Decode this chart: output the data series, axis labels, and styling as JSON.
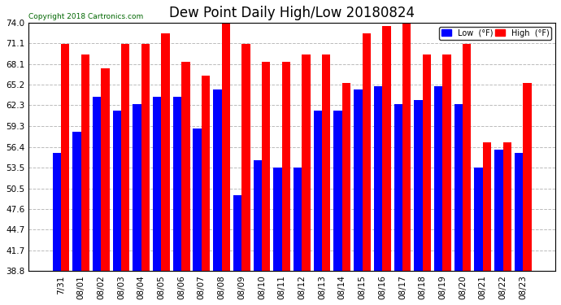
{
  "title": "Dew Point Daily High/Low 20180824",
  "copyright": "Copyright 2018 Cartronics.com",
  "dates": [
    "7/31",
    "08/01",
    "08/02",
    "08/03",
    "08/04",
    "08/05",
    "08/06",
    "08/07",
    "08/08",
    "08/09",
    "08/10",
    "08/11",
    "08/12",
    "08/13",
    "08/14",
    "08/15",
    "08/16",
    "08/17",
    "08/18",
    "08/19",
    "08/20",
    "08/21",
    "08/22",
    "08/23"
  ],
  "low_values": [
    55.5,
    58.5,
    63.5,
    61.5,
    62.5,
    63.5,
    63.5,
    59.0,
    64.5,
    49.5,
    54.5,
    53.5,
    53.5,
    61.5,
    61.5,
    64.5,
    65.0,
    62.5,
    63.0,
    65.0,
    62.5,
    53.5,
    56.0,
    55.5
  ],
  "high_values": [
    71.0,
    69.5,
    67.5,
    71.0,
    71.0,
    72.5,
    68.5,
    66.5,
    74.5,
    71.0,
    68.5,
    68.5,
    69.5,
    69.5,
    65.5,
    72.5,
    73.5,
    74.5,
    69.5,
    69.5,
    71.0,
    57.0,
    57.0,
    65.5
  ],
  "low_color": "#0000ff",
  "high_color": "#ff0000",
  "bg_color": "#ffffff",
  "plot_bg_color": "#ffffff",
  "grid_color": "#bbbbbb",
  "ylim_min": 38.8,
  "ylim_max": 74.0,
  "bar_bottom": 38.8,
  "yticks": [
    38.8,
    41.7,
    44.7,
    47.6,
    50.5,
    53.5,
    56.4,
    59.3,
    62.3,
    65.2,
    68.1,
    71.1,
    74.0
  ],
  "title_fontsize": 12,
  "tick_fontsize": 7.5,
  "legend_low_label": "Low  (°F)",
  "legend_high_label": "High  (°F)"
}
